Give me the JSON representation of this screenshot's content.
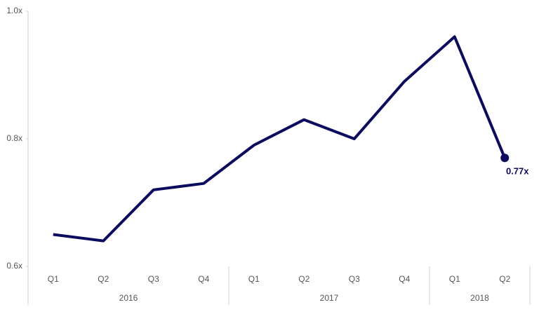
{
  "chart_data": {
    "type": "line",
    "categories": [
      "Q1",
      "Q2",
      "Q3",
      "Q4",
      "Q1",
      "Q2",
      "Q3",
      "Q4",
      "Q1",
      "Q2"
    ],
    "group_labels": [
      "2016",
      "2017",
      "2018"
    ],
    "group_sizes": [
      4,
      4,
      2
    ],
    "series": [
      {
        "color": "#0b0b5f",
        "values": [
          0.65,
          0.64,
          0.72,
          0.73,
          0.79,
          0.83,
          0.8,
          0.89,
          0.96,
          0.77
        ],
        "value_labels": [
          null,
          null,
          null,
          null,
          null,
          null,
          null,
          null,
          null,
          "0.77x"
        ]
      }
    ],
    "ylim": [
      0.6,
      1.0
    ],
    "yticks": [
      {
        "value": 0.6,
        "label": "0.6x"
      },
      {
        "value": 0.8,
        "label": "0.8x"
      },
      {
        "value": 1.0,
        "label": "1.0x"
      }
    ],
    "grid": false
  }
}
